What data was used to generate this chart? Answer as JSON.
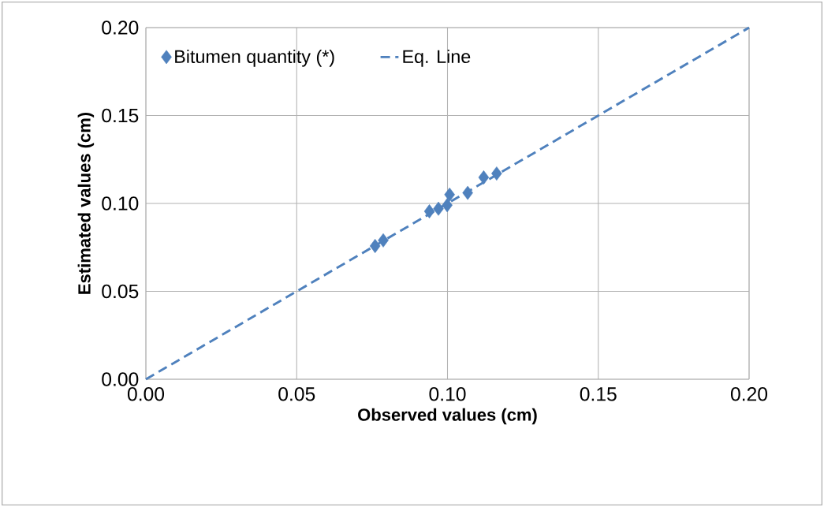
{
  "chart_data": {
    "type": "scatter",
    "xlabel": "Observed values (cm)",
    "ylabel": "Estimated values (cm)",
    "series": [
      {
        "name": "Bitumen quantity (*)",
        "color": "#4f81bd",
        "marker": "diamond",
        "x": [
          0.076,
          0.0787,
          0.094,
          0.097,
          0.0999,
          0.1007,
          0.1067,
          0.112,
          0.1163
        ],
        "values": [
          0.0758,
          0.079,
          0.0955,
          0.097,
          0.099,
          0.105,
          0.106,
          0.1148,
          0.117
        ]
      },
      {
        "name": "Eq. Line",
        "type": "line",
        "color": "#4f81bd",
        "line_style": "dashed",
        "marker": "none",
        "x": [
          0,
          0.2
        ],
        "values": [
          0,
          0.2
        ]
      }
    ],
    "xlim": [
      0,
      0.2
    ],
    "ylim": [
      0,
      0.2
    ],
    "xticks": [
      {
        "value": 0,
        "label": "0.00"
      },
      {
        "value": 0.05,
        "label": "0.05"
      },
      {
        "value": 0.1,
        "label": "0.10"
      },
      {
        "value": 0.15,
        "label": "0.15"
      },
      {
        "value": 0.2,
        "label": "0.20"
      }
    ],
    "yticks": [
      {
        "value": 0,
        "label": "0.00"
      },
      {
        "value": 0.05,
        "label": "0.05"
      },
      {
        "value": 0.1,
        "label": "0.10"
      },
      {
        "value": 0.15,
        "label": "0.15"
      },
      {
        "value": 0.2,
        "label": "0.20"
      }
    ],
    "grid": true,
    "legend": "top left"
  }
}
